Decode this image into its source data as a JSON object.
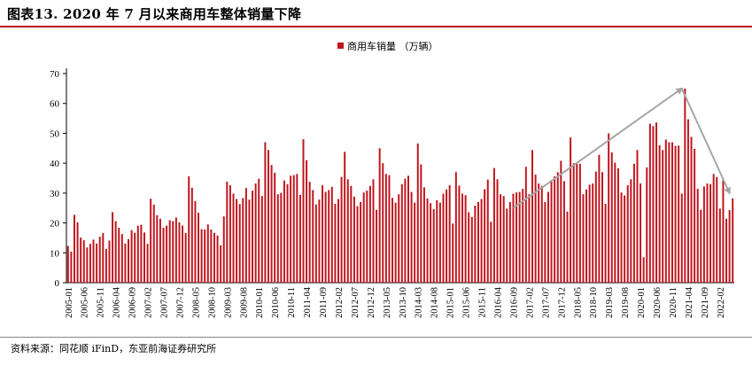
{
  "header": {
    "title": "图表13. 2020 年 7 月以来商用车整体销量下降"
  },
  "footer": {
    "source": "资料来源：同花顺 iFinD，东亚前海证券研究所"
  },
  "colors": {
    "bar": "#c0141c",
    "rule": "#c0141c",
    "arrow": "#a6a6a6",
    "axis": "#000000"
  },
  "chart_data": {
    "type": "bar",
    "title": "",
    "xlabel": "",
    "ylabel": "",
    "ylim": [
      0,
      70
    ],
    "yticks": [
      0,
      10,
      20,
      30,
      40,
      50,
      60,
      70
    ],
    "grid": false,
    "legend_position": "top-center",
    "series": [
      {
        "name": "商用车销量 （万辆）",
        "start_month": "2005-01",
        "values": [
          12.3,
          10.4,
          22.7,
          20.2,
          15.1,
          14.2,
          11.8,
          13.0,
          14.4,
          13.1,
          15.4,
          16.6,
          11.3,
          14.1,
          23.6,
          20.6,
          18.4,
          16.3,
          13.1,
          14.6,
          17.6,
          16.7,
          19.1,
          19.4,
          16.8,
          13.0,
          28.1,
          26.1,
          22.6,
          21.4,
          18.4,
          19.1,
          20.9,
          20.6,
          21.8,
          20.2,
          19.1,
          16.6,
          35.6,
          31.8,
          27.3,
          23.4,
          17.9,
          17.8,
          19.5,
          17.8,
          16.7,
          15.8,
          12.5,
          22.2,
          33.8,
          32.6,
          29.8,
          28.0,
          26.3,
          28.3,
          31.7,
          27.8,
          30.8,
          33.2,
          34.8,
          29.0,
          47.0,
          44.4,
          39.4,
          36.8,
          29.6,
          30.1,
          34.2,
          33.0,
          35.8,
          36.0,
          36.4,
          29.4,
          48.0,
          41.0,
          33.8,
          31.0,
          26.2,
          27.8,
          32.6,
          30.4,
          31.0,
          32.1,
          26.4,
          28.0,
          35.4,
          43.8,
          34.6,
          32.4,
          28.8,
          25.6,
          27.0,
          30.2,
          30.8,
          32.4,
          34.6,
          24.4,
          45.0,
          40.0,
          36.4,
          36.0,
          28.4,
          26.8,
          29.6,
          33.0,
          34.8,
          35.8,
          30.4,
          26.8,
          46.6,
          39.6,
          31.9,
          28.2,
          26.6,
          24.6,
          27.6,
          26.8,
          29.8,
          31.2,
          32.6,
          19.8,
          37.0,
          32.5,
          29.8,
          29.3,
          23.6,
          22.0,
          25.8,
          27.0,
          28.0,
          31.3,
          34.5,
          20.4,
          38.4,
          34.6,
          29.6,
          29.0,
          24.8,
          27.0,
          29.8,
          30.2,
          30.4,
          31.4,
          38.8,
          29.6,
          44.4,
          36.2,
          33.2,
          32.4,
          27.0,
          30.4,
          34.4,
          35.6,
          37.0,
          40.8,
          34.0,
          23.8,
          48.6,
          40.0,
          39.8,
          39.8,
          29.6,
          31.2,
          32.8,
          33.2,
          37.2,
          42.8,
          37.0,
          26.4,
          50.0,
          43.6,
          40.2,
          38.3,
          30.2,
          29.2,
          32.6,
          34.6,
          39.8,
          44.4,
          33.2,
          8.5,
          38.6,
          53.2,
          52.4,
          53.6,
          46.0,
          44.4,
          47.9,
          47.0,
          47.0,
          45.8,
          45.9,
          29.8,
          65.0,
          54.7,
          48.8,
          44.8,
          31.4,
          24.4,
          32.2,
          33.2,
          33.0,
          36.4,
          35.4,
          24.8,
          34.3,
          21.4,
          24.3,
          28.2
        ]
      }
    ],
    "x_tick_labels": [
      "2005-01",
      "2005-06",
      "2005-11",
      "2006-04",
      "2006-09",
      "2007-02",
      "2007-07",
      "2007-12",
      "2008-05",
      "2008-10",
      "2009-03",
      "2009-08",
      "2010-01",
      "2010-06",
      "2010-11",
      "2011-04",
      "2011-09",
      "2012-02",
      "2012-07",
      "2012-12",
      "2013-05",
      "2013-10",
      "2014-03",
      "2014-08",
      "2015-01",
      "2015-06",
      "2015-11",
      "2016-04",
      "2016-09",
      "2017-02",
      "2017-07",
      "2017-12",
      "2018-05",
      "2018-10",
      "2019-03",
      "2019-08",
      "2020-01",
      "2020-06",
      "2020-11",
      "2021-04",
      "2021-09",
      "2022-02"
    ],
    "annotations": [
      {
        "type": "arrow",
        "from": {
          "x": "2016-09",
          "y": 25
        },
        "to": {
          "x": "2021-02",
          "y": 65
        }
      },
      {
        "type": "arrow",
        "from": {
          "x": "2021-02",
          "y": 65
        },
        "to": {
          "x": "2022-05",
          "y": 30
        }
      }
    ]
  }
}
